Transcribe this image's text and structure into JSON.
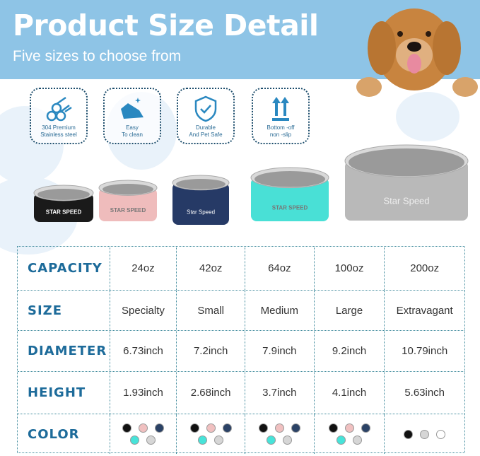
{
  "header": {
    "title": "Product Size Detail",
    "subtitle": "Five sizes to choose from"
  },
  "features": [
    {
      "icon": "steel-rods-icon",
      "line1": "304 Premium",
      "line2": "Stainless steel"
    },
    {
      "icon": "clean-hand-icon",
      "line1": "Easy",
      "line2": "To clean"
    },
    {
      "icon": "shield-check-icon",
      "line1": "Durable",
      "line2": "And Pet Safe"
    },
    {
      "icon": "up-arrows-icon",
      "line1": "Bottom -off",
      "line2": "non -slip"
    }
  ],
  "bowls": [
    {
      "color": "#1a1a1a",
      "brand": "STAR SPEED"
    },
    {
      "color": "#efbcbc",
      "brand": "STAR SPEED"
    },
    {
      "color": "#263a66",
      "brand": "Star Speed"
    },
    {
      "color": "#49e0d6",
      "brand": "STAR SPEED"
    },
    {
      "color": "#b9b9b9",
      "brand": "Star Speed"
    }
  ],
  "table": {
    "rows": [
      {
        "label": "CAPACITY",
        "values": [
          "24oz",
          "42oz",
          "64oz",
          "100oz",
          "200oz"
        ]
      },
      {
        "label": "SIZE",
        "values": [
          "Specialty",
          "Small",
          "Medium",
          "Large",
          "Extravagant"
        ]
      },
      {
        "label": "DIAMETER",
        "values": [
          "6.73inch",
          "7.2inch",
          "7.9inch",
          "9.2inch",
          "10.79inch"
        ]
      },
      {
        "label": "HEIGHT",
        "values": [
          "1.93inch",
          "2.68inch",
          "3.7inch",
          "4.1inch",
          "5.63inch"
        ]
      }
    ],
    "color_label": "COLOR",
    "colors": [
      [
        "#111111",
        "#f0c0c0",
        "#2b4266",
        "#47e3d9",
        "#d6d6d6"
      ],
      [
        "#111111",
        "#f0c0c0",
        "#2b4266",
        "#47e3d9",
        "#d6d6d6"
      ],
      [
        "#111111",
        "#f0c0c0",
        "#2b4266",
        "#47e3d9",
        "#d6d6d6"
      ],
      [
        "#111111",
        "#f0c0c0",
        "#2b4266",
        "#47e3d9",
        "#d6d6d6"
      ],
      [
        "#111111",
        "#d6d6d6",
        "#ffffff"
      ]
    ]
  }
}
